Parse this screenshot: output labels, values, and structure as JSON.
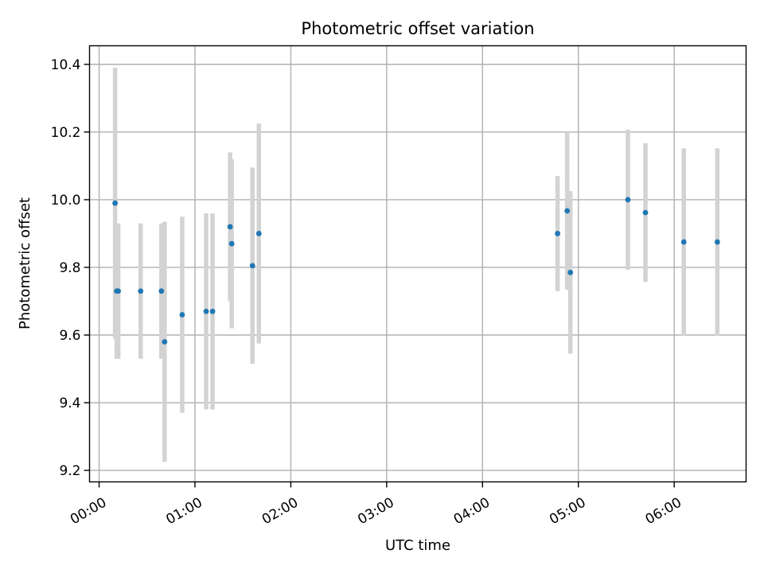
{
  "chart_data": {
    "type": "scatter",
    "title": "Photometric offset variation",
    "xlabel": "UTC time",
    "ylabel": "Photometric offset",
    "x_ticks": [
      "00:00",
      "01:00",
      "02:00",
      "03:00",
      "04:00",
      "05:00",
      "06:00"
    ],
    "x_tick_values": [
      "00:00",
      "01:00",
      "02:00",
      "03:00",
      "04:00",
      "05:00",
      "06:00"
    ],
    "xlim": [
      "23:54",
      "06:45"
    ],
    "y_ticks": [
      "9.2",
      "9.4",
      "9.6",
      "9.8",
      "10.0",
      "10.2",
      "10.4"
    ],
    "y_tick_values": [
      9.2,
      9.4,
      9.6,
      9.8,
      10.0,
      10.2,
      10.4
    ],
    "ylim": [
      9.166,
      10.455
    ],
    "grid": true,
    "colors": {
      "marker": "#1f77b4",
      "errorbar": "#d3d3d3"
    },
    "points": [
      {
        "x": "00:10",
        "y": 9.99,
        "yerr": 0.4
      },
      {
        "x": "00:11",
        "y": 9.73,
        "yerr": 0.2
      },
      {
        "x": "00:12",
        "y": 9.73,
        "yerr": 0.2
      },
      {
        "x": "00:26",
        "y": 9.73,
        "yerr": 0.2
      },
      {
        "x": "00:39",
        "y": 9.73,
        "yerr": 0.2
      },
      {
        "x": "00:41",
        "y": 9.58,
        "yerr": 0.355
      },
      {
        "x": "00:52",
        "y": 9.66,
        "yerr": 0.29
      },
      {
        "x": "01:07",
        "y": 9.67,
        "yerr": 0.29
      },
      {
        "x": "01:11",
        "y": 9.67,
        "yerr": 0.29
      },
      {
        "x": "01:22",
        "y": 9.92,
        "yerr": 0.22
      },
      {
        "x": "01:23",
        "y": 9.87,
        "yerr": 0.25
      },
      {
        "x": "01:36",
        "y": 9.805,
        "yerr": 0.29
      },
      {
        "x": "01:40",
        "y": 9.9,
        "yerr": 0.325
      },
      {
        "x": "04:47",
        "y": 9.9,
        "yerr": 0.17
      },
      {
        "x": "04:53",
        "y": 9.967,
        "yerr": 0.233
      },
      {
        "x": "04:55",
        "y": 9.785,
        "yerr": 0.24
      },
      {
        "x": "05:31",
        "y": 10.0,
        "yerr": 0.207
      },
      {
        "x": "05:42",
        "y": 9.962,
        "yerr": 0.205
      },
      {
        "x": "06:06",
        "y": 9.875,
        "yerr": 0.277
      },
      {
        "x": "06:27",
        "y": 9.875,
        "yerr": 0.277
      }
    ]
  }
}
